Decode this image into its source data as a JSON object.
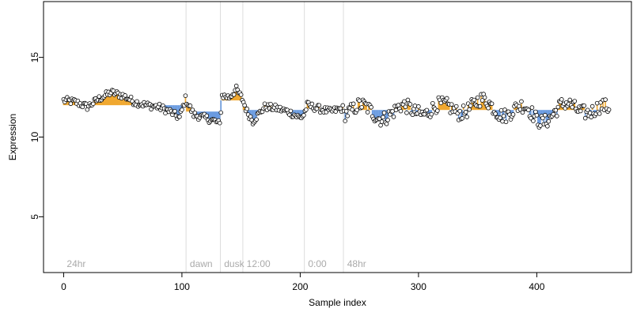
{
  "chart_data": {
    "type": "scatter",
    "title": "",
    "xlabel": "Sample index",
    "ylabel": "Expression",
    "xlim": [
      -17,
      480
    ],
    "ylim": [
      1.5,
      18.5
    ],
    "x_ticks": [
      0,
      100,
      200,
      300,
      400
    ],
    "y_ticks": [
      5,
      10,
      15
    ],
    "grid": false,
    "legend": "none",
    "colors": {
      "up": "#f0a830",
      "down": "#6a9be0",
      "point_fill": "#ffffff",
      "point_stroke": "#000000",
      "divider": "#dddddd",
      "annotation": "#aaaaaa"
    },
    "region_markers": [
      {
        "label": "24hr",
        "x": 0
      },
      {
        "label": "dawn",
        "x": 104
      },
      {
        "label": "dusk",
        "x": 133
      },
      {
        "label": "12:00",
        "x": 152
      },
      {
        "label": "0:00",
        "x": 204
      },
      {
        "label": "48hr",
        "x": 237
      }
    ],
    "segment_baselines": [
      {
        "x_start": 0,
        "x_end": 103,
        "baseline": 12.0
      },
      {
        "x_start": 104,
        "x_end": 132,
        "baseline": 11.6
      },
      {
        "x_start": 133,
        "x_end": 151,
        "baseline": 12.3
      },
      {
        "x_start": 152,
        "x_end": 203,
        "baseline": 11.7
      },
      {
        "x_start": 204,
        "x_end": 236,
        "baseline": 11.8
      },
      {
        "x_start": 237,
        "x_end": 461,
        "baseline": 11.7
      }
    ],
    "x": [
      0,
      461
    ],
    "anchors": [
      [
        0,
        12.3
      ],
      [
        10,
        12.2
      ],
      [
        20,
        11.9
      ],
      [
        30,
        12.4
      ],
      [
        40,
        12.8
      ],
      [
        50,
        12.6
      ],
      [
        60,
        12.2
      ],
      [
        70,
        12.0
      ],
      [
        80,
        11.9
      ],
      [
        90,
        11.6
      ],
      [
        98,
        11.2
      ],
      [
        103,
        12.4
      ],
      [
        110,
        11.4
      ],
      [
        120,
        11.2
      ],
      [
        128,
        11.0
      ],
      [
        132,
        10.8
      ],
      [
        134,
        12.6
      ],
      [
        140,
        12.5
      ],
      [
        146,
        13.0
      ],
      [
        151,
        12.4
      ],
      [
        155,
        11.6
      ],
      [
        160,
        11.0
      ],
      [
        170,
        11.9
      ],
      [
        180,
        11.8
      ],
      [
        190,
        11.6
      ],
      [
        200,
        11.2
      ],
      [
        203,
        11.4
      ],
      [
        206,
        12.0
      ],
      [
        215,
        11.8
      ],
      [
        225,
        11.6
      ],
      [
        236,
        11.8
      ],
      [
        245,
        11.5
      ],
      [
        260,
        11.7
      ],
      [
        280,
        11.4
      ],
      [
        300,
        11.9
      ],
      [
        320,
        11.6
      ],
      [
        340,
        12.0
      ],
      [
        360,
        11.9
      ],
      [
        380,
        11.7
      ],
      [
        400,
        11.3
      ],
      [
        420,
        11.6
      ],
      [
        440,
        12.0
      ],
      [
        461,
        11.4
      ]
    ],
    "noise_amplitude": 0.9,
    "n_points": 462
  }
}
